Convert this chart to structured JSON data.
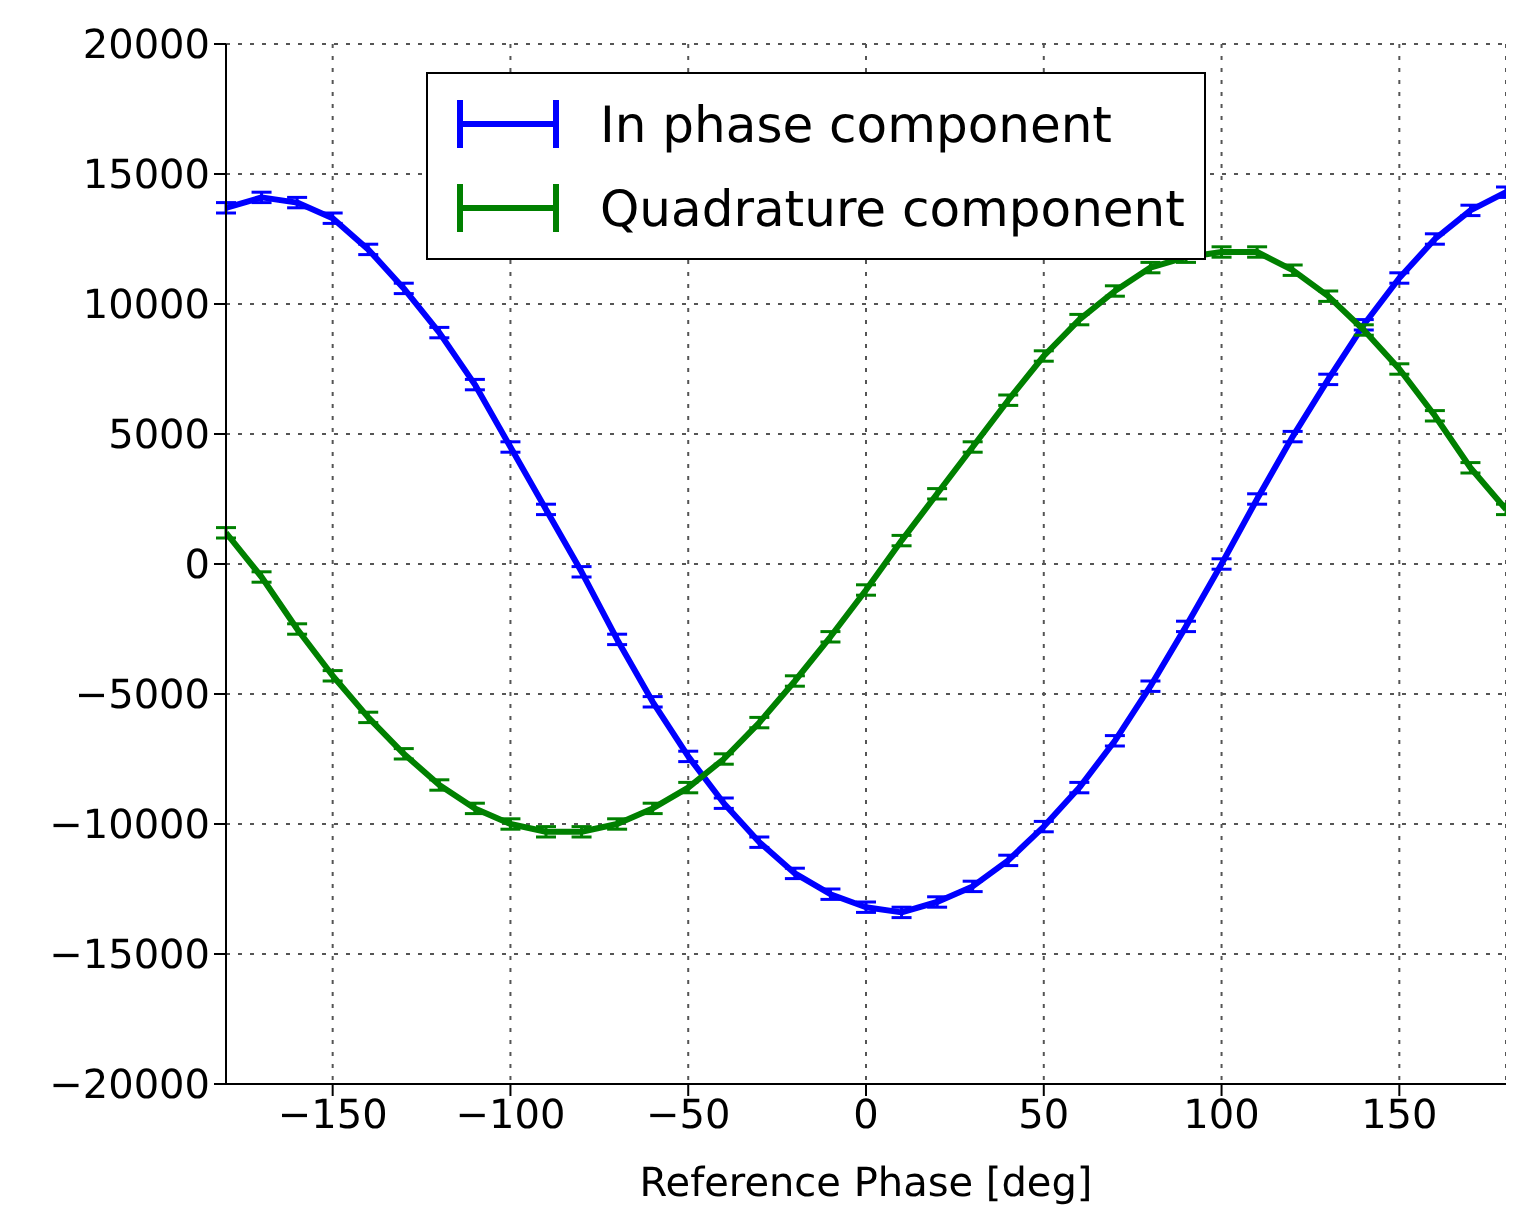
{
  "chart_data": {
    "type": "line",
    "xlabel": "Reference Phase [deg]",
    "x": [
      -180,
      -170,
      -160,
      -150,
      -140,
      -130,
      -120,
      -110,
      -100,
      -90,
      -80,
      -70,
      -60,
      -50,
      -40,
      -30,
      -20,
      -10,
      0,
      10,
      20,
      30,
      40,
      50,
      60,
      70,
      80,
      90,
      100,
      110,
      120,
      130,
      140,
      150,
      160,
      170,
      180
    ],
    "series": [
      {
        "name": "In phase component",
        "color": "#0000ff",
        "values": [
          13700,
          14100,
          13900,
          13300,
          12100,
          10600,
          8900,
          6900,
          4500,
          2100,
          -300,
          -2900,
          -5300,
          -7400,
          -9200,
          -10700,
          -11900,
          -12700,
          -13200,
          -13400,
          -13000,
          -12400,
          -11400,
          -10100,
          -8600,
          -6800,
          -4700,
          -2400,
          0,
          2500,
          4900,
          7100,
          9200,
          11000,
          12500,
          13600,
          14300
        ],
        "errors": [
          200,
          200,
          200,
          200,
          200,
          200,
          200,
          200,
          200,
          200,
          200,
          200,
          200,
          200,
          200,
          200,
          200,
          200,
          200,
          200,
          200,
          200,
          200,
          200,
          200,
          200,
          200,
          200,
          200,
          200,
          200,
          200,
          200,
          200,
          200,
          200,
          200
        ]
      },
      {
        "name": "Quadrature component",
        "color": "#008000",
        "values": [
          1200,
          -500,
          -2500,
          -4300,
          -5900,
          -7300,
          -8500,
          -9400,
          -10000,
          -10300,
          -10300,
          -10000,
          -9400,
          -8600,
          -7500,
          -6100,
          -4500,
          -2800,
          -1000,
          900,
          2700,
          4500,
          6300,
          8000,
          9400,
          10500,
          11400,
          11800,
          12000,
          12000,
          11300,
          10300,
          9000,
          7500,
          5700,
          3700,
          2100
        ],
        "errors": [
          200,
          200,
          200,
          200,
          200,
          200,
          200,
          200,
          200,
          200,
          200,
          200,
          200,
          200,
          200,
          200,
          200,
          200,
          200,
          200,
          200,
          200,
          200,
          200,
          200,
          200,
          200,
          200,
          200,
          200,
          200,
          200,
          200,
          200,
          200,
          200,
          200
        ]
      }
    ],
    "xlim": [
      -180,
      180
    ],
    "xticks": [
      -150,
      -100,
      -50,
      0,
      50,
      100,
      150
    ],
    "ylim": [
      -20000,
      20000
    ],
    "yticks": [
      -20000,
      -15000,
      -10000,
      -5000,
      0,
      5000,
      10000,
      15000,
      20000
    ],
    "grid": true,
    "legend": "top",
    "marker": "none",
    "line_style": "solid"
  }
}
